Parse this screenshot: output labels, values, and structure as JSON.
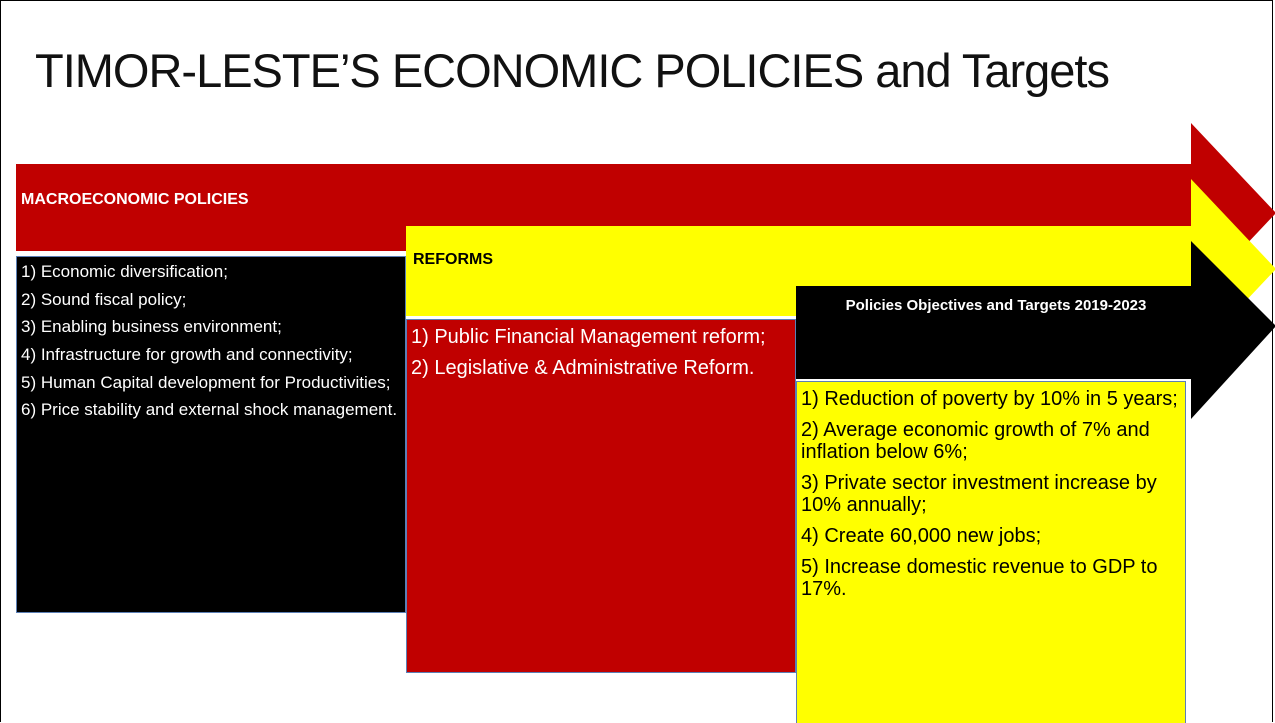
{
  "title": "TIMOR-LESTE’S ECONOMIC POLICIES and Targets",
  "columns": [
    {
      "heading": "MACROECONOMIC POLICIES",
      "items": [
        "1) Economic diversification;",
        "2) Sound fiscal policy;",
        "3) Enabling business environment;",
        "4) Infrastructure for growth and connectivity;",
        "5) Human Capital development for Productivities;",
        "6) Price stability and external shock management."
      ]
    },
    {
      "heading": "REFORMS",
      "items": [
        "1) Public Financial Management reform;",
        "2) Legislative & Administrative Reform."
      ]
    },
    {
      "heading": "Policies Objectives and Targets 2019-2023",
      "items": [
        "1) Reduction of poverty by 10% in 5 years;",
        "2) Average economic growth of 7% and inflation below 6%;",
        "3) Private sector investment increase by 10% annually;",
        "4) Create 60,000 new jobs;",
        "5) Increase domestic revenue to GDP to 17%."
      ]
    }
  ]
}
